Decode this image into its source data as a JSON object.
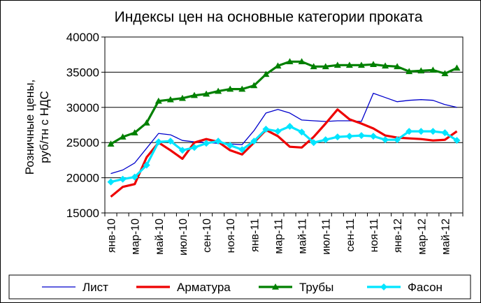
{
  "chart_data": {
    "type": "line",
    "title": "Индексы цен на основные категории проката",
    "ylabel_line1": "Розничные цены,",
    "ylabel_line2": "руб/тн с НДС",
    "xlabel": "",
    "ylim": [
      15000,
      40000
    ],
    "yticks": [
      15000,
      20000,
      25000,
      30000,
      35000,
      40000
    ],
    "grid": true,
    "legend_position": "bottom",
    "x": [
      "янв-10",
      "фев-10",
      "мар-10",
      "апр-10",
      "май-10",
      "июн-10",
      "июл-10",
      "авг-10",
      "сен-10",
      "окт-10",
      "ноя-10",
      "дек-10",
      "янв-11",
      "фев-11",
      "мар-11",
      "апр-11",
      "май-11",
      "июн-11",
      "июл-11",
      "авг-11",
      "сен-11",
      "окт-11",
      "ноя-11",
      "дек-11",
      "янв-12",
      "фев-12",
      "мар-12",
      "апр-12",
      "май-12",
      "июн-12"
    ],
    "x_tick_labels": [
      "янв-10",
      "мар-10",
      "май-10",
      "июл-10",
      "сен-10",
      "ноя-10",
      "янв-11",
      "мар-11",
      "май-11",
      "июл-11",
      "сен-11",
      "ноя-11",
      "янв-12",
      "мар-12",
      "май-12"
    ],
    "series": [
      {
        "name": "Лист",
        "color": "#0000cc",
        "marker": "none",
        "values": [
          20600,
          21100,
          22100,
          24200,
          26300,
          26100,
          25300,
          25100,
          25000,
          24900,
          24800,
          24700,
          26700,
          29200,
          29700,
          29200,
          28200,
          28100,
          28000,
          28100,
          28100,
          28000,
          32000,
          31400,
          30800,
          31000,
          31100,
          31000,
          30400,
          30000
        ]
      },
      {
        "name": "Арматура",
        "color": "#ee0000",
        "marker": "none",
        "values": [
          17300,
          18700,
          19100,
          22900,
          25000,
          23900,
          22700,
          25000,
          25500,
          25100,
          23900,
          23300,
          25000,
          26800,
          25900,
          24400,
          24300,
          25800,
          27700,
          29700,
          28300,
          27700,
          27000,
          26000,
          25700,
          25600,
          25500,
          25300,
          25400,
          26600
        ]
      },
      {
        "name": "Трубы",
        "color": "#008000",
        "marker": "triangle",
        "values": [
          24800,
          25800,
          26400,
          27800,
          30900,
          31100,
          31300,
          31700,
          31900,
          32300,
          32600,
          32600,
          33100,
          34700,
          35900,
          36500,
          36500,
          35800,
          35800,
          36000,
          36000,
          36000,
          36100,
          35900,
          35800,
          35100,
          35200,
          35300,
          34800,
          35600
        ]
      },
      {
        "name": "Фасон",
        "color": "#00e5ff",
        "marker": "diamond",
        "values": [
          19400,
          19800,
          20100,
          21800,
          25100,
          25200,
          23900,
          24300,
          24900,
          25200,
          24600,
          24000,
          25200,
          26900,
          26600,
          27300,
          26500,
          25000,
          25400,
          25800,
          25900,
          26000,
          25900,
          25400,
          25400,
          26600,
          26600,
          26600,
          26400,
          25300
        ]
      }
    ]
  }
}
